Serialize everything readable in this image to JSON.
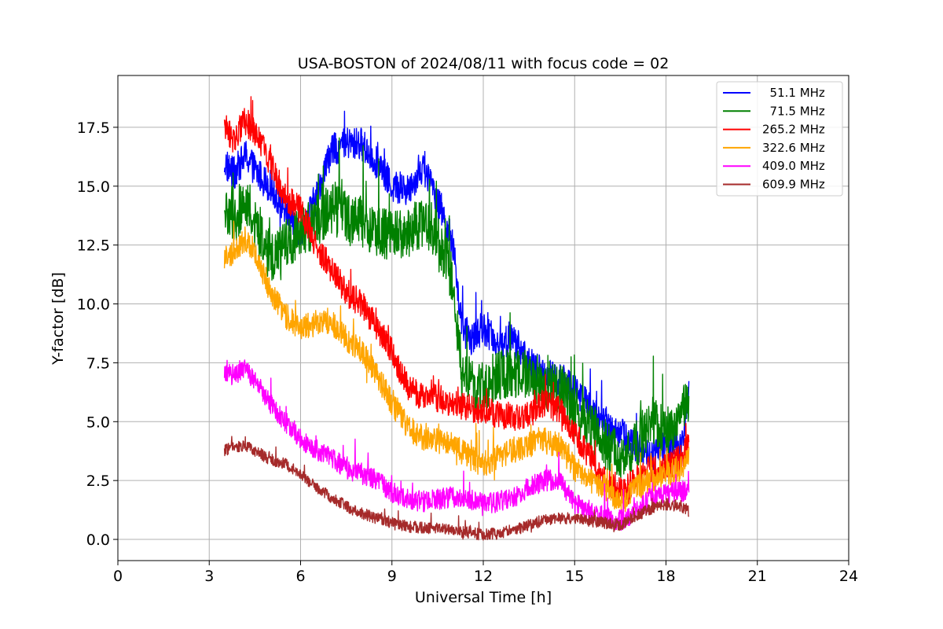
{
  "chart_data": {
    "type": "line",
    "title": "USA-BOSTON of 2024/08/11 with focus code = 02",
    "xlabel": "Universal Time [h]",
    "ylabel": "Y-factor [dB]",
    "xlim": [
      0,
      24
    ],
    "ylim": [
      -0.9,
      19.7
    ],
    "xticks": [
      0,
      3,
      6,
      9,
      12,
      15,
      18,
      21,
      24
    ],
    "yticks": [
      0.0,
      2.5,
      5.0,
      7.5,
      10.0,
      12.5,
      15.0,
      17.5
    ],
    "xtick_labels": [
      "0",
      "3",
      "6",
      "9",
      "12",
      "15",
      "18",
      "21",
      "24"
    ],
    "ytick_labels": [
      "0.0",
      "2.5",
      "5.0",
      "7.5",
      "10.0",
      "12.5",
      "15.0",
      "17.5"
    ],
    "grid": true,
    "legend_position": "top-right",
    "series": [
      {
        "name": "  51.1 MHz",
        "color": "#0000ff",
        "noise": 0.7,
        "x": [
          3.5,
          3.8,
          4.2,
          4.6,
          5.0,
          5.5,
          6.0,
          6.5,
          7.0,
          7.5,
          8.0,
          8.5,
          9.0,
          9.5,
          10.0,
          10.5,
          11.0,
          11.3,
          11.6,
          12.0,
          12.5,
          13.0,
          13.5,
          14.0,
          14.5,
          15.0,
          15.5,
          16.0,
          16.5,
          17.0,
          17.5,
          18.0,
          18.5,
          18.75
        ],
        "y": [
          16.0,
          15.5,
          16.3,
          15.5,
          15.0,
          14.0,
          13.0,
          14.5,
          16.5,
          16.8,
          16.8,
          16.0,
          15.0,
          14.8,
          15.8,
          14.5,
          12.5,
          9.0,
          8.5,
          9.0,
          8.3,
          8.5,
          7.5,
          7.0,
          6.8,
          6.5,
          5.5,
          5.0,
          4.5,
          4.0,
          3.5,
          4.0,
          3.8,
          6.5
        ]
      },
      {
        "name": "  71.5 MHz",
        "color": "#008000",
        "noise": 1.1,
        "x": [
          3.5,
          3.8,
          4.2,
          4.6,
          5.0,
          5.5,
          6.0,
          6.5,
          7.0,
          7.5,
          8.0,
          8.5,
          9.0,
          9.5,
          10.0,
          10.5,
          11.0,
          11.3,
          11.6,
          12.0,
          12.5,
          13.0,
          13.5,
          14.0,
          14.5,
          15.0,
          15.5,
          16.0,
          16.5,
          17.0,
          17.5,
          18.0,
          18.5,
          18.75
        ],
        "y": [
          14.0,
          13.5,
          14.5,
          13.0,
          12.0,
          12.5,
          13.0,
          13.5,
          14.0,
          13.8,
          13.5,
          13.0,
          13.0,
          13.0,
          13.5,
          13.0,
          11.0,
          7.0,
          6.5,
          6.5,
          7.0,
          7.0,
          7.0,
          6.5,
          6.5,
          5.5,
          5.0,
          4.0,
          3.5,
          4.0,
          5.0,
          4.5,
          5.0,
          6.0
        ]
      },
      {
        "name": "265.2 MHz",
        "color": "#ff0000",
        "noise": 0.6,
        "x": [
          3.5,
          3.8,
          4.2,
          4.6,
          5.0,
          5.5,
          6.0,
          6.5,
          7.0,
          7.5,
          8.0,
          8.5,
          9.0,
          9.5,
          10.0,
          10.5,
          11.0,
          11.5,
          12.0,
          12.5,
          13.0,
          13.5,
          14.0,
          14.5,
          15.0,
          15.5,
          16.0,
          16.5,
          17.0,
          17.5,
          18.0,
          18.5,
          18.75
        ],
        "y": [
          17.5,
          17.0,
          17.8,
          17.0,
          16.0,
          14.5,
          14.0,
          12.5,
          11.5,
          10.5,
          10.0,
          9.0,
          8.0,
          6.5,
          6.0,
          6.0,
          5.8,
          5.6,
          5.5,
          5.3,
          5.2,
          5.3,
          5.8,
          5.5,
          4.5,
          3.5,
          2.5,
          2.0,
          2.5,
          3.0,
          3.0,
          3.5,
          4.0
        ]
      },
      {
        "name": "322.6 MHz",
        "color": "#ffa500",
        "noise": 0.55,
        "x": [
          3.5,
          3.8,
          4.2,
          4.6,
          5.0,
          5.5,
          6.0,
          6.5,
          7.0,
          7.5,
          8.0,
          8.5,
          9.0,
          9.5,
          10.0,
          10.5,
          11.0,
          11.5,
          12.0,
          12.5,
          13.0,
          13.5,
          14.0,
          14.5,
          15.0,
          15.5,
          16.0,
          16.5,
          17.0,
          17.5,
          18.0,
          18.5,
          18.75
        ],
        "y": [
          12.0,
          12.2,
          12.8,
          12.0,
          10.5,
          9.5,
          9.0,
          9.2,
          9.3,
          8.5,
          8.0,
          7.0,
          5.8,
          4.8,
          4.3,
          4.2,
          4.0,
          3.5,
          3.2,
          3.5,
          3.8,
          4.0,
          4.2,
          4.0,
          3.0,
          2.5,
          2.2,
          1.5,
          2.2,
          2.5,
          2.8,
          3.0,
          3.5
        ]
      },
      {
        "name": "409.0 MHz",
        "color": "#ff00ff",
        "noise": 0.45,
        "x": [
          3.5,
          3.8,
          4.2,
          4.6,
          5.0,
          5.5,
          6.0,
          6.5,
          7.0,
          7.5,
          8.0,
          8.5,
          9.0,
          9.5,
          10.0,
          10.5,
          11.0,
          11.5,
          12.0,
          12.5,
          13.0,
          13.5,
          14.0,
          14.5,
          15.0,
          15.5,
          16.0,
          16.5,
          17.0,
          17.5,
          18.0,
          18.5,
          18.75
        ],
        "y": [
          7.0,
          7.0,
          7.3,
          6.5,
          5.8,
          5.0,
          4.3,
          3.8,
          3.5,
          3.0,
          2.8,
          2.5,
          2.0,
          1.7,
          1.6,
          1.7,
          1.8,
          1.7,
          1.5,
          1.6,
          1.8,
          2.2,
          2.5,
          2.5,
          1.5,
          1.2,
          1.0,
          0.8,
          1.2,
          1.8,
          2.0,
          2.0,
          2.2
        ]
      },
      {
        "name": "609.9 MHz",
        "color": "#a52a2a",
        "noise": 0.25,
        "x": [
          3.5,
          3.8,
          4.2,
          4.6,
          5.0,
          5.5,
          6.0,
          6.5,
          7.0,
          7.5,
          8.0,
          8.5,
          9.0,
          9.5,
          10.0,
          10.5,
          11.0,
          11.5,
          12.0,
          12.5,
          13.0,
          13.5,
          14.0,
          14.5,
          15.0,
          15.5,
          16.0,
          16.5,
          17.0,
          17.5,
          18.0,
          18.5,
          18.75
        ],
        "y": [
          3.8,
          3.9,
          4.0,
          3.7,
          3.4,
          3.2,
          2.8,
          2.2,
          1.8,
          1.4,
          1.1,
          0.9,
          0.7,
          0.55,
          0.5,
          0.45,
          0.4,
          0.3,
          0.2,
          0.25,
          0.4,
          0.6,
          0.8,
          0.9,
          0.9,
          0.8,
          0.7,
          0.6,
          1.0,
          1.3,
          1.5,
          1.4,
          1.2
        ]
      }
    ]
  }
}
